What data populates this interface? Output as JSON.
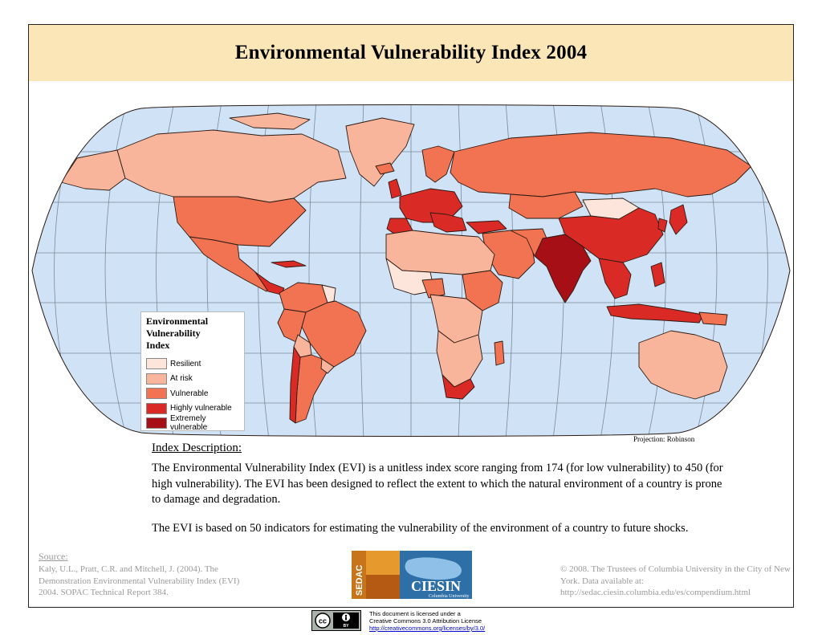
{
  "title": "Environmental Vulnerability Index 2004",
  "legend": {
    "title_lines": [
      "Environmental",
      "Vulnerability",
      "Index"
    ],
    "items": [
      {
        "label": "Resilient",
        "color": "#fde5dc"
      },
      {
        "label": "At risk",
        "color": "#f9b59b"
      },
      {
        "label": "Vulnerable",
        "color": "#f27352"
      },
      {
        "label": "Highly vulnerable",
        "color": "#d92a25"
      },
      {
        "label": "Extremely vulnerable",
        "color": "#a50f15"
      }
    ]
  },
  "map": {
    "ocean_color": "#cfe2f6",
    "graticule_color": "#7a8a99",
    "border_color": "#2b1a12"
  },
  "projection": "Projection: Robinson",
  "description": {
    "heading": "Index Description:",
    "paragraph_1": "The Environmental Vulnerability Index (EVI) is a unitless index score ranging from 174 (for low vulnerability) to 450 (for high vulnerability). The EVI has been designed to reflect the extent to which the natural environment of a country is prone to damage and degradation.",
    "paragraph_2": "The EVI is based on 50 indicators for estimating the vulnerability of the environment of a country to future shocks."
  },
  "source": {
    "heading": "Source:",
    "text": "Kaly, U.L., Pratt, C.R. and Mitchell, J. (2004). The Demonstration Environmental Vulnerability Index (EVI) 2004. SOPAC Technical Report 384."
  },
  "copyright": "© 2008. The Trustees of Columbia University in the City of New York. Data available at: http://sedac.ciesin.columbia.edu/es/compendium.html",
  "logo": {
    "sedac": "SEDAC",
    "ciesin": "CIESIN",
    "subtitle": "Columbia University"
  },
  "license": {
    "line_1": "This document is licensed under a",
    "line_2": "Creative Commons 3.0 Attribution License",
    "link": "http://creativecommons.org/licenses/by/3.0/",
    "badge_cc": "cc",
    "badge_by": "BY"
  }
}
